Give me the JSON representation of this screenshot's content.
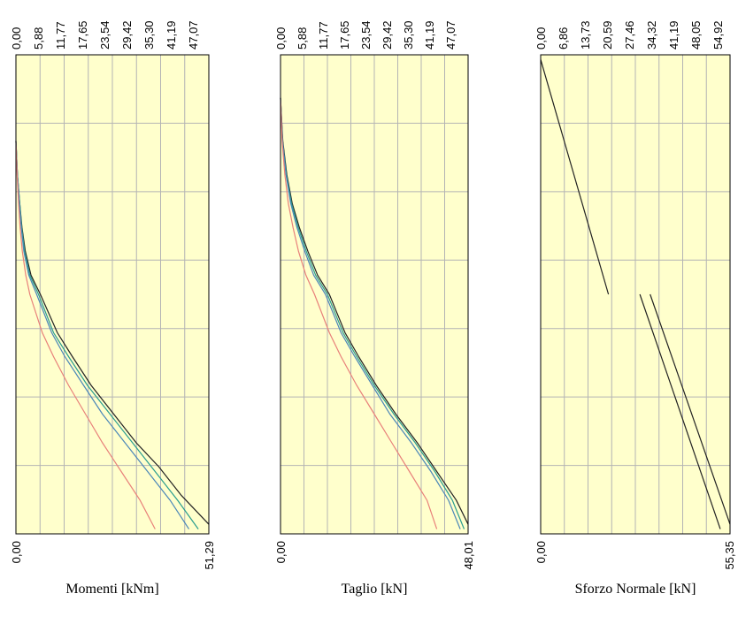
{
  "colors": {
    "plot_background": "#ffffcc",
    "grid": "#b4b4b4",
    "frame": "#000000",
    "series_red": "#e8807a",
    "series_teal": "#2a9d8f",
    "series_blue": "#4a86b8",
    "series_black": "#222222"
  },
  "chart_data": [
    {
      "type": "line",
      "title": "Momenti [kNm]",
      "top_tick_labels": [
        "0,00",
        "5,88",
        "11,77",
        "17,65",
        "23,54",
        "29,42",
        "35,30",
        "41,19",
        "47,07"
      ],
      "bottom_tick_labels": [
        "0,00",
        "51,29"
      ],
      "xlim": [
        0,
        51.29
      ],
      "grid": true,
      "series": [
        {
          "color": "series_black",
          "points": [
            [
              0.0,
              0.18
            ],
            [
              0.4,
              0.25
            ],
            [
              1.0,
              0.31
            ],
            [
              1.6,
              0.36
            ],
            [
              2.5,
              0.41
            ],
            [
              4.0,
              0.46
            ],
            [
              6.5,
              0.5
            ],
            [
              11.0,
              0.58
            ],
            [
              15.0,
              0.63
            ],
            [
              20.0,
              0.69
            ],
            [
              26.0,
              0.75
            ],
            [
              32.0,
              0.81
            ],
            [
              38.0,
              0.86
            ],
            [
              44.0,
              0.92
            ],
            [
              51.29,
              0.98
            ]
          ]
        },
        {
          "color": "series_teal",
          "points": [
            [
              0.0,
              0.18
            ],
            [
              0.4,
              0.25
            ],
            [
              1.0,
              0.31
            ],
            [
              1.5,
              0.36
            ],
            [
              2.3,
              0.41
            ],
            [
              3.7,
              0.46
            ],
            [
              6.0,
              0.5
            ],
            [
              10.0,
              0.58
            ],
            [
              14.0,
              0.63
            ],
            [
              19.0,
              0.69
            ],
            [
              25.0,
              0.75
            ],
            [
              31.0,
              0.81
            ],
            [
              37.0,
              0.87
            ],
            [
              43.0,
              0.93
            ],
            [
              48.5,
              0.99
            ]
          ]
        },
        {
          "color": "series_blue",
          "points": [
            [
              0.0,
              0.18
            ],
            [
              0.4,
              0.25
            ],
            [
              0.9,
              0.31
            ],
            [
              1.4,
              0.36
            ],
            [
              2.1,
              0.41
            ],
            [
              3.4,
              0.46
            ],
            [
              5.5,
              0.5
            ],
            [
              9.5,
              0.58
            ],
            [
              13.0,
              0.63
            ],
            [
              18.0,
              0.69
            ],
            [
              23.0,
              0.75
            ],
            [
              29.0,
              0.81
            ],
            [
              35.0,
              0.87
            ],
            [
              41.0,
              0.93
            ],
            [
              46.0,
              0.99
            ]
          ]
        },
        {
          "color": "series_red",
          "points": [
            [
              0.0,
              0.18
            ],
            [
              0.3,
              0.25
            ],
            [
              0.7,
              0.31
            ],
            [
              1.1,
              0.36
            ],
            [
              1.7,
              0.41
            ],
            [
              2.6,
              0.46
            ],
            [
              3.7,
              0.5
            ],
            [
              7.0,
              0.58
            ],
            [
              10.0,
              0.63
            ],
            [
              14.0,
              0.69
            ],
            [
              18.5,
              0.75
            ],
            [
              23.0,
              0.81
            ],
            [
              28.0,
              0.87
            ],
            [
              33.0,
              0.93
            ],
            [
              37.0,
              0.99
            ]
          ]
        }
      ]
    },
    {
      "type": "line",
      "title": "Taglio [kN]",
      "top_tick_labels": [
        "0,00",
        "5,88",
        "11,77",
        "17,65",
        "23,54",
        "29,42",
        "35,30",
        "41,19",
        "47,07"
      ],
      "bottom_tick_labels": [
        "0,00",
        "48,01"
      ],
      "xlim": [
        0,
        48.01
      ],
      "grid": true,
      "series": [
        {
          "color": "series_black",
          "points": [
            [
              0.0,
              0.09
            ],
            [
              0.6,
              0.18
            ],
            [
              1.6,
              0.25
            ],
            [
              3.0,
              0.31
            ],
            [
              4.8,
              0.36
            ],
            [
              7.0,
              0.41
            ],
            [
              9.5,
              0.46
            ],
            [
              12.5,
              0.5
            ],
            [
              16.5,
              0.58
            ],
            [
              20.0,
              0.63
            ],
            [
              24.5,
              0.69
            ],
            [
              29.5,
              0.75
            ],
            [
              35.0,
              0.81
            ],
            [
              40.0,
              0.87
            ],
            [
              45.0,
              0.93
            ],
            [
              48.01,
              0.98
            ]
          ]
        },
        {
          "color": "series_teal",
          "points": [
            [
              0.0,
              0.09
            ],
            [
              0.5,
              0.18
            ],
            [
              1.5,
              0.25
            ],
            [
              2.8,
              0.31
            ],
            [
              4.5,
              0.36
            ],
            [
              6.6,
              0.41
            ],
            [
              9.0,
              0.46
            ],
            [
              12.0,
              0.5
            ],
            [
              16.0,
              0.58
            ],
            [
              19.5,
              0.63
            ],
            [
              24.0,
              0.69
            ],
            [
              29.0,
              0.75
            ],
            [
              34.5,
              0.81
            ],
            [
              39.5,
              0.87
            ],
            [
              44.0,
              0.93
            ],
            [
              47.0,
              0.99
            ]
          ]
        },
        {
          "color": "series_blue",
          "points": [
            [
              0.0,
              0.09
            ],
            [
              0.5,
              0.18
            ],
            [
              1.4,
              0.25
            ],
            [
              2.6,
              0.31
            ],
            [
              4.2,
              0.36
            ],
            [
              6.2,
              0.41
            ],
            [
              8.5,
              0.46
            ],
            [
              11.5,
              0.5
            ],
            [
              15.5,
              0.58
            ],
            [
              19.0,
              0.63
            ],
            [
              23.5,
              0.69
            ],
            [
              28.0,
              0.75
            ],
            [
              33.5,
              0.81
            ],
            [
              38.5,
              0.87
            ],
            [
              43.0,
              0.93
            ],
            [
              46.0,
              0.99
            ]
          ]
        },
        {
          "color": "series_red",
          "points": [
            [
              0.0,
              0.09
            ],
            [
              0.4,
              0.18
            ],
            [
              1.1,
              0.25
            ],
            [
              2.0,
              0.31
            ],
            [
              3.2,
              0.36
            ],
            [
              4.6,
              0.41
            ],
            [
              6.5,
              0.46
            ],
            [
              8.7,
              0.5
            ],
            [
              12.5,
              0.58
            ],
            [
              15.5,
              0.63
            ],
            [
              19.5,
              0.69
            ],
            [
              24.0,
              0.75
            ],
            [
              28.5,
              0.81
            ],
            [
              33.0,
              0.87
            ],
            [
              37.5,
              0.93
            ],
            [
              40.0,
              0.99
            ]
          ]
        }
      ]
    },
    {
      "type": "line",
      "title": "Sforzo Normale [kN]",
      "top_tick_labels": [
        "0,00",
        "6,86",
        "13,73",
        "20,59",
        "27,46",
        "34,32",
        "41,19",
        "48,05",
        "54,92"
      ],
      "bottom_tick_labels": [
        "0,00",
        "55,35"
      ],
      "xlim": [
        0,
        55.35
      ],
      "grid": true,
      "series": [
        {
          "color": "series_black",
          "points": [
            [
              0.0,
              0.01
            ],
            [
              19.8,
              0.5
            ]
          ]
        },
        {
          "color": "series_black",
          "points": [
            [
              29.0,
              0.5
            ],
            [
              52.5,
              0.99
            ]
          ]
        },
        {
          "color": "series_black",
          "points": [
            [
              32.0,
              0.5
            ],
            [
              55.35,
              0.98
            ]
          ]
        }
      ]
    }
  ]
}
